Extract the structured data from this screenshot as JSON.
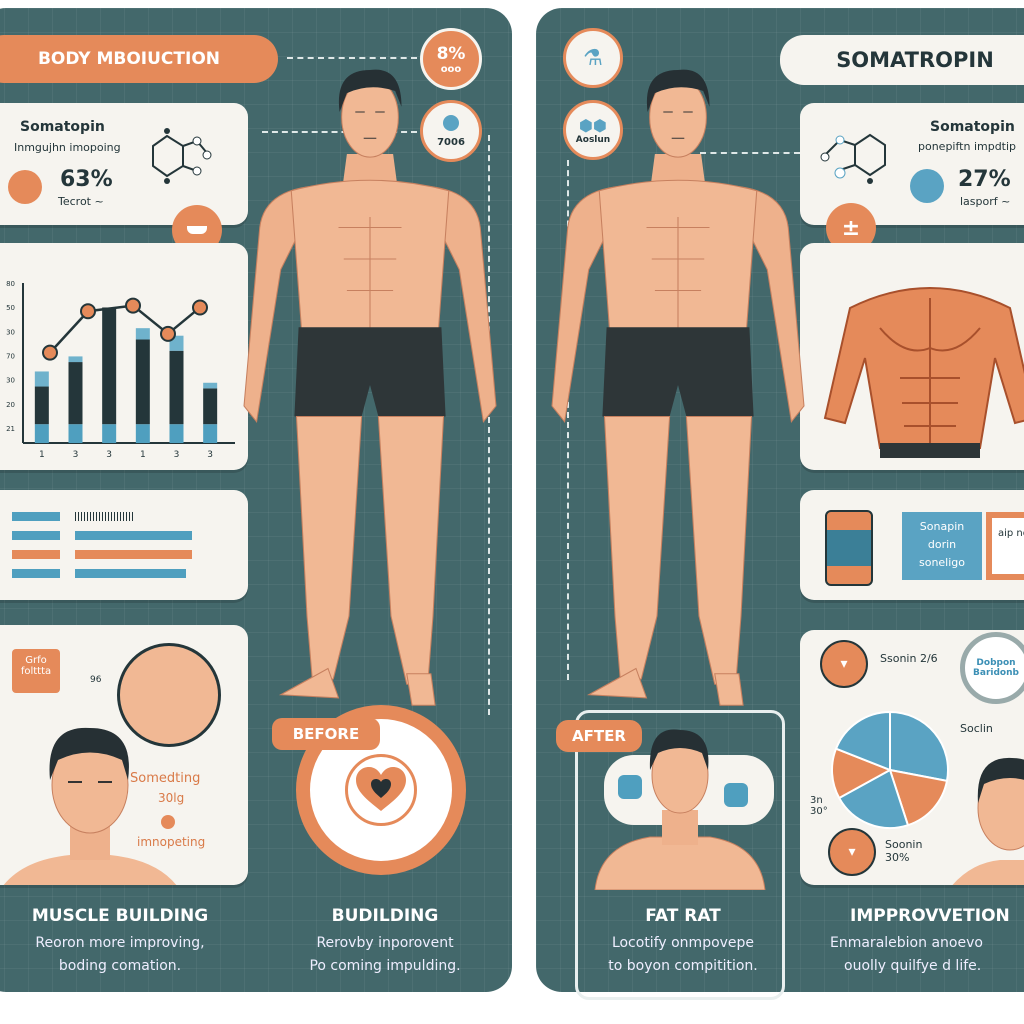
{
  "left": {
    "title": "BODY MBOIUCTION",
    "badge1": {
      "value": "8%",
      "label": "ooo"
    },
    "badge2": {
      "label": "7006"
    },
    "info_card": {
      "name": "Somatopin",
      "desc": "Inmgujhn imopoing",
      "percent": "63%",
      "note": "Tecrot ~"
    },
    "chart_data": {
      "type": "bar",
      "y_ticks": [
        "80",
        "50",
        "30",
        "70",
        "30",
        "20",
        "21"
      ],
      "categories": [
        "1",
        "3",
        "3",
        "1",
        "3",
        "3"
      ],
      "series": [
        {
          "values": [
            10,
            10,
            10,
            10,
            10,
            10
          ]
        },
        {
          "values": [
            20,
            33,
            62,
            45,
            39,
            19
          ]
        },
        {
          "values": [
            8,
            3,
            0,
            6,
            8,
            3
          ]
        }
      ],
      "line": [
        48,
        70,
        73,
        58,
        72
      ],
      "ylim": [
        0,
        85
      ]
    },
    "progress_bars": [
      {
        "color": "#4f9fbf",
        "level": 0.45
      },
      {
        "color": "#4f9fbf",
        "level": 0.9
      },
      {
        "color": "#e58a5a",
        "level": 0.9
      },
      {
        "color": "#4f9fbf",
        "level": 0.85
      }
    ],
    "face_card": {
      "tag": "Grfo folttta",
      "arrow_label": "96",
      "text1": "Somedting",
      "text2": "30lg",
      "text3": "imnopeting"
    },
    "before_label": "BEFORE",
    "sections": [
      {
        "heading": "MUSCLE BUILDING",
        "line1": "Reoron more improving,",
        "line2": "boding comation."
      },
      {
        "heading": "BUDILDING",
        "line1": "Rerovby inporovent",
        "line2": "Po coming impulding."
      }
    ]
  },
  "right": {
    "title": "SOMATROPIN",
    "badge2": {
      "label": "Aoslun"
    },
    "info_card": {
      "name": "Somatopin",
      "desc": "ponepiftn impdtip",
      "percent": "27%",
      "note": "lasporf ~"
    },
    "product_card": {
      "box_text": "Sonapin dorin soneligo",
      "side_text": "aip no"
    },
    "pie_card": {
      "label1": "Ssonin 2/6",
      "label2": "Soclin",
      "label3": "3n 30°",
      "label4": "Soonin 30%",
      "lens": "Dobpon Baridonb",
      "pie": [
        {
          "value": 28,
          "color": "#5aa3c3"
        },
        {
          "value": 17,
          "color": "#e58a5a"
        },
        {
          "value": 22,
          "color": "#5aa3c3"
        },
        {
          "value": 14,
          "color": "#e58a5a"
        },
        {
          "value": 19,
          "color": "#5aa3c3"
        }
      ]
    },
    "after_label": "AFTER",
    "sections": [
      {
        "heading": "FAT RAT",
        "line1": "Locotify onmpovepe",
        "line2": "to boyon compitition."
      },
      {
        "heading": "IMPPROVVETION",
        "line1": "Enmaralebion anoevo",
        "line2": "ouolly quilfye d life."
      }
    ]
  },
  "colors": {
    "panel": "#43686b",
    "accent": "#e58a5a",
    "blue": "#5aa3c3",
    "card": "#f6f4ef",
    "skin": "#f1b894"
  }
}
